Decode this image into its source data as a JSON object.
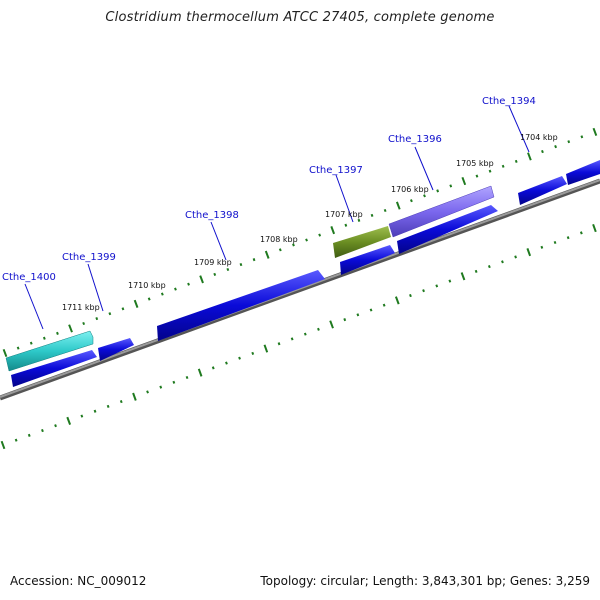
{
  "title": "Clostridium thermocellum ATCC 27405, complete genome",
  "accession": "Accession: NC_009012",
  "summary": "Topology: circular; Length: 3,843,301 bp; Genes: 3,259",
  "kbp_labels": [
    "1704 kbp",
    "1705 kbp",
    "1706 kbp",
    "1707 kbp",
    "1708 kbp",
    "1709 kbp",
    "1710 kbp",
    "1711 kbp"
  ],
  "gene_labels": [
    "Cthe_1394",
    "Cthe_1396",
    "Cthe_1397",
    "Cthe_1398",
    "Cthe_1399",
    "Cthe_1400"
  ],
  "colors": {
    "backbone": "#808080",
    "tick": "#1f7a1f",
    "cds_blue": "#0a0ad8",
    "cds_cyan": "#2ec9c9",
    "cds_olive": "#6b8e23",
    "cds_purple": "#7b68ee",
    "label": "#1010cc"
  }
}
